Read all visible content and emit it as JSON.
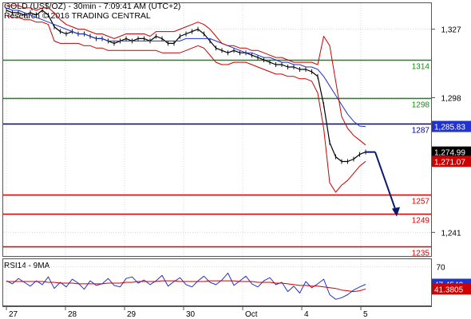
{
  "header": {
    "title": "GOLD (US$/OZ) - 30min - 7:09:41 AM (UTC+2)",
    "subtitle": "Research © 2016 TRADING CENTRAL"
  },
  "colors": {
    "price_line": "#000000",
    "bollinger": "#cc0000",
    "moving_average": "#2233cc",
    "resistance": "#1a8a1a",
    "pivot": "#000099",
    "support": "#dd0000",
    "forecast_arrow": "#0a1a6a",
    "rsi_line": "#2233cc",
    "rsi_signal": "#cc0000"
  },
  "chart_data": [
    {
      "type": "line",
      "panel": "price",
      "title": "GOLD (US$/OZ) - 30min",
      "ylim": [
        1231,
        1338
      ],
      "y_ticks": [
        1327,
        1298,
        1241
      ],
      "x_tick_labels": [
        "27",
        "28",
        "29",
        "30",
        "Oct",
        "4",
        "5"
      ],
      "levels": [
        {
          "label": "1314",
          "value": 1314,
          "kind": "resistance"
        },
        {
          "label": "1298",
          "value": 1298,
          "kind": "resistance"
        },
        {
          "label": "1287",
          "value": 1287,
          "kind": "pivot"
        },
        {
          "label": "1257",
          "value": 1257,
          "kind": "support"
        },
        {
          "label": "1249",
          "value": 1249,
          "kind": "support"
        },
        {
          "label": "1235",
          "value": 1235,
          "kind": "support"
        }
      ],
      "price_tags": [
        {
          "label": "1,285.83",
          "value": 1285.83,
          "kind": "moving_average"
        },
        {
          "label": "1,274.99",
          "value": 1274.99,
          "kind": "price"
        },
        {
          "label": "1,271.07",
          "value": 1271.07,
          "kind": "bollinger"
        }
      ],
      "series": [
        {
          "kind": "price",
          "values": [
            1335,
            1334,
            1334,
            1333,
            1334,
            1333,
            1335,
            1333,
            1328,
            1326,
            1325,
            1326,
            1325,
            1325,
            1324,
            1323,
            1323,
            1322,
            1321,
            1322,
            1323,
            1322,
            1323,
            1323,
            1322,
            1324,
            1323,
            1321,
            1321,
            1324,
            1325,
            1326,
            1327,
            1325,
            1322,
            1319,
            1318,
            1317,
            1318,
            1317,
            1317,
            1316,
            1315,
            1314,
            1313,
            1312,
            1312,
            1311,
            1311,
            1310,
            1310,
            1309,
            1307,
            1295,
            1279,
            1273,
            1271,
            1271,
            1272,
            1274,
            1275
          ]
        },
        {
          "kind": "moving_average",
          "values": [
            1336,
            1335,
            1335,
            1334,
            1333,
            1332,
            1331,
            1330,
            1329,
            1328,
            1327,
            1326,
            1325,
            1325,
            1324,
            1323,
            1323,
            1322,
            1322,
            1322,
            1322,
            1322,
            1322,
            1322,
            1322,
            1322,
            1322,
            1322,
            1322,
            1322,
            1323,
            1323,
            1323,
            1323,
            1323,
            1322,
            1321,
            1320,
            1319,
            1318,
            1317,
            1317,
            1316,
            1315,
            1315,
            1314,
            1313,
            1313,
            1312,
            1312,
            1311,
            1311,
            1310,
            1307,
            1303,
            1299,
            1295,
            1291,
            1288,
            1286,
            1285.83
          ]
        },
        {
          "kind": "bollinger_upper",
          "values": [
            1337,
            1337,
            1337,
            1336,
            1336,
            1335,
            1336,
            1336,
            1334,
            1331,
            1329,
            1328,
            1327,
            1327,
            1326,
            1325,
            1325,
            1324,
            1323,
            1324,
            1325,
            1325,
            1325,
            1325,
            1324,
            1326,
            1326,
            1326,
            1326,
            1327,
            1328,
            1329,
            1330,
            1329,
            1327,
            1324,
            1321,
            1320,
            1320,
            1319,
            1319,
            1318,
            1318,
            1317,
            1316,
            1315,
            1315,
            1314,
            1313,
            1313,
            1313,
            1313,
            1312,
            1324,
            1320,
            1305,
            1290,
            1285,
            1282,
            1280,
            1278
          ]
        },
        {
          "kind": "bollinger_lower",
          "values": [
            1333,
            1332,
            1332,
            1331,
            1331,
            1330,
            1330,
            1329,
            1322,
            1321,
            1321,
            1321,
            1321,
            1320,
            1320,
            1319,
            1319,
            1318,
            1318,
            1318,
            1318,
            1318,
            1318,
            1318,
            1318,
            1318,
            1317,
            1317,
            1317,
            1317,
            1318,
            1319,
            1320,
            1319,
            1316,
            1313,
            1312,
            1312,
            1313,
            1313,
            1313,
            1312,
            1311,
            1310,
            1309,
            1308,
            1308,
            1307,
            1307,
            1306,
            1306,
            1305,
            1300,
            1285,
            1262,
            1258,
            1261,
            1263,
            1266,
            1269,
            1271.07
          ]
        },
        {
          "kind": "forecast",
          "values": [
            1275,
            1248
          ]
        }
      ]
    },
    {
      "type": "line",
      "panel": "rsi",
      "title": "RSI14 - 9MA",
      "ylim": [
        20,
        80
      ],
      "y_ticks": [
        70
      ],
      "value_tags": [
        {
          "label": "47.4542",
          "value": 47.4542,
          "kind": "rsi_line"
        },
        {
          "label": "41.3805",
          "value": 41.3805,
          "kind": "rsi_signal"
        }
      ],
      "series": [
        {
          "kind": "rsi_line",
          "values": [
            52,
            48,
            55,
            50,
            45,
            52,
            47,
            57,
            42,
            50,
            44,
            54,
            49,
            41,
            52,
            46,
            48,
            55,
            46,
            44,
            55,
            57,
            49,
            53,
            47,
            52,
            59,
            45,
            51,
            56,
            47,
            44,
            52,
            58,
            50,
            47,
            53,
            62,
            46,
            52,
            58,
            48,
            44,
            52,
            56,
            47,
            50,
            38,
            45,
            36,
            51,
            43,
            48,
            54,
            34,
            28,
            30,
            34,
            40,
            44,
            47.4542
          ]
        },
        {
          "kind": "rsi_signal",
          "values": [
            51,
            51,
            51,
            51,
            51,
            51,
            51,
            50,
            50,
            49,
            49,
            49,
            48,
            48,
            48,
            48,
            48,
            49,
            49,
            49,
            50,
            50,
            51,
            51,
            51,
            51,
            52,
            52,
            52,
            51,
            51,
            51,
            51,
            51,
            52,
            52,
            52,
            52,
            52,
            51,
            51,
            51,
            50,
            50,
            50,
            49,
            49,
            48,
            47,
            46,
            46,
            45,
            45,
            44,
            43,
            42,
            40,
            39,
            38,
            39,
            41.3805
          ]
        }
      ]
    }
  ]
}
